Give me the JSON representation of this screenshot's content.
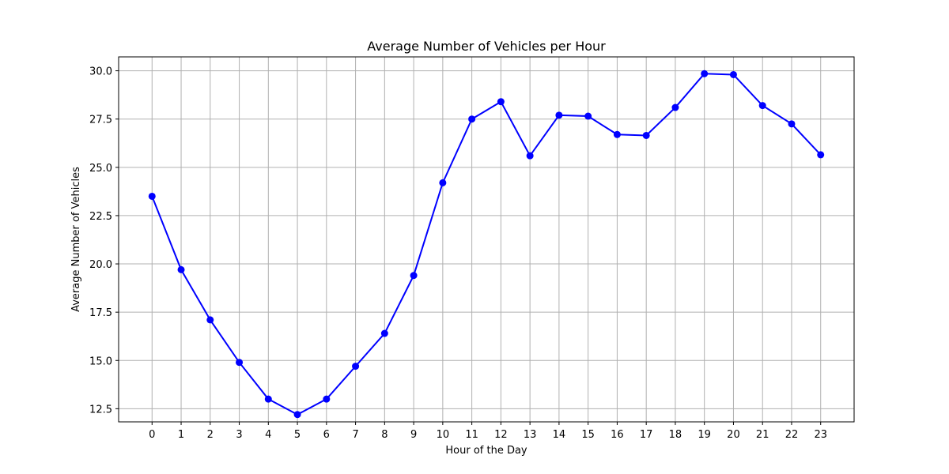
{
  "chart_data": {
    "type": "line",
    "title": "Average Number of Vehicles per Hour",
    "xlabel": "Hour of the Day",
    "ylabel": "Average Number of Vehicles",
    "x": [
      0,
      1,
      2,
      3,
      4,
      5,
      6,
      7,
      8,
      9,
      10,
      11,
      12,
      13,
      14,
      15,
      16,
      17,
      18,
      19,
      20,
      21,
      22,
      23
    ],
    "x_tick_labels": [
      "0",
      "1",
      "2",
      "3",
      "4",
      "5",
      "6",
      "7",
      "8",
      "9",
      "10",
      "11",
      "12",
      "13",
      "14",
      "15",
      "16",
      "17",
      "18",
      "19",
      "20",
      "21",
      "22",
      "23"
    ],
    "y_tick_values": [
      12.5,
      15.0,
      17.5,
      20.0,
      22.5,
      25.0,
      27.5,
      30.0
    ],
    "y_tick_labels": [
      "12.5",
      "15.0",
      "17.5",
      "20.0",
      "22.5",
      "25.0",
      "27.5",
      "30.0"
    ],
    "xlim": [
      -1.15,
      24.15
    ],
    "ylim": [
      11.82,
      30.72
    ],
    "grid": true,
    "series": [
      {
        "color": "#0000ff",
        "marker": "circle",
        "values": [
          23.5,
          19.7,
          17.1,
          14.9,
          13.0,
          12.2,
          13.0,
          14.7,
          16.4,
          19.4,
          24.2,
          27.5,
          28.4,
          25.6,
          27.7,
          27.65,
          26.7,
          26.65,
          28.1,
          29.85,
          29.8,
          28.2,
          27.25,
          25.65
        ]
      }
    ]
  }
}
